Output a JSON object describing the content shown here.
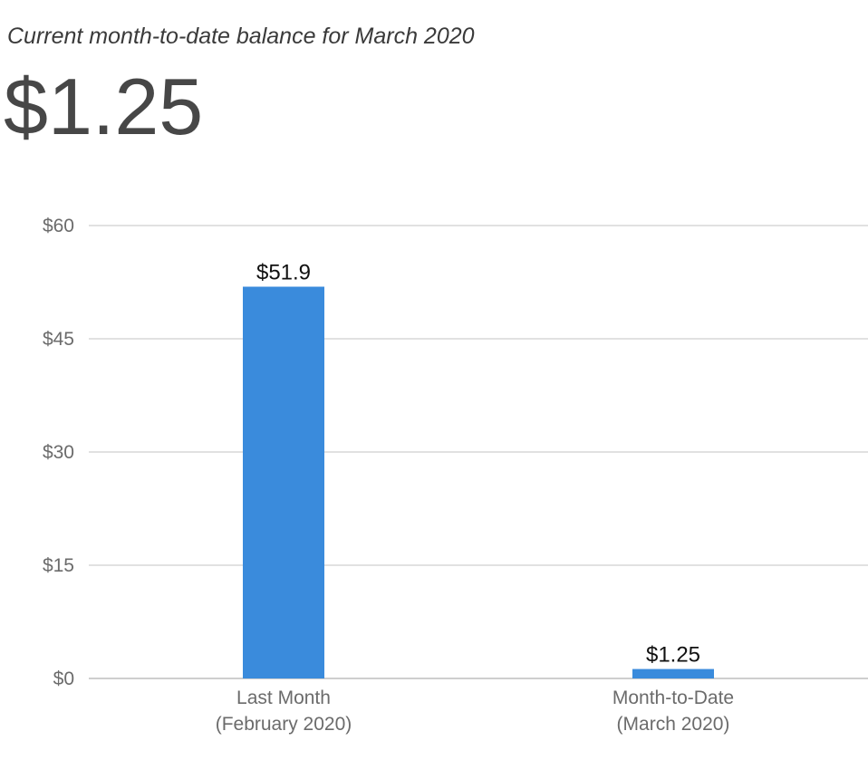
{
  "header": {
    "subtitle": "Current month-to-date balance for March 2020",
    "balance": "$1.25"
  },
  "colors": {
    "bar": "#3a8bdc",
    "grid": "#cfcfcf",
    "axis": "#bdbdbd",
    "text_muted": "#6b6b6b"
  },
  "chart_data": {
    "type": "bar",
    "categories": [
      [
        "Last Month",
        "(February 2020)"
      ],
      [
        "Month-to-Date",
        "(March 2020)"
      ]
    ],
    "values": [
      51.9,
      1.25
    ],
    "data_labels": [
      "$51.9",
      "$1.25"
    ],
    "ylim": [
      0,
      60
    ],
    "yticks": [
      0,
      15,
      30,
      45,
      60
    ],
    "ytick_labels": [
      "$0",
      "$15",
      "$30",
      "$45",
      "$60"
    ],
    "grid": true,
    "legend": "none"
  }
}
